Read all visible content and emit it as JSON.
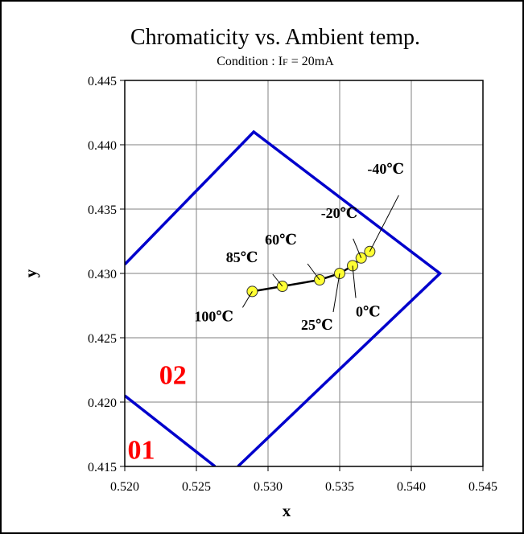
{
  "chart_data": {
    "type": "scatter",
    "title": "Chromaticity vs. Ambient temp.",
    "subtitle": {
      "prefix": "Condition : I",
      "sub": "F",
      "suffix": " = 20mA"
    },
    "xlabel": "x",
    "ylabel": "y",
    "xlim": [
      0.52,
      0.545
    ],
    "ylim": [
      0.415,
      0.445
    ],
    "xticks": [
      "0.520",
      "0.525",
      "0.530",
      "0.535",
      "0.540",
      "0.545"
    ],
    "yticks": [
      "0.415",
      "0.420",
      "0.425",
      "0.430",
      "0.435",
      "0.440",
      "0.445"
    ],
    "grid": true,
    "series": [
      {
        "points": [
          {
            "label": "100℃",
            "x": 0.5289,
            "y": 0.4286
          },
          {
            "label": "85℃",
            "x": 0.531,
            "y": 0.429
          },
          {
            "label": "60℃",
            "x": 0.5336,
            "y": 0.4295
          },
          {
            "label": "25℃",
            "x": 0.535,
            "y": 0.43
          },
          {
            "label": "0℃",
            "x": 0.5359,
            "y": 0.4306
          },
          {
            "label": "-20℃",
            "x": 0.5365,
            "y": 0.4312
          },
          {
            "label": "-40℃",
            "x": 0.5371,
            "y": 0.4317
          }
        ],
        "color": "#000000",
        "marker_color": "#ffff33"
      }
    ],
    "regions": [
      {
        "name": "02",
        "color": "#ff0000",
        "outline_color": "#0000cc",
        "vertices": [
          [
            0.52,
            0.4307
          ],
          [
            0.529,
            0.441
          ],
          [
            0.542,
            0.43
          ],
          [
            0.5279,
            0.415
          ]
        ]
      },
      {
        "name": "01",
        "color": "#ff0000",
        "outline_color": "#0000cc",
        "vertices": [
          [
            0.52,
            0.4205
          ],
          [
            0.5263,
            0.415
          ]
        ]
      }
    ]
  }
}
